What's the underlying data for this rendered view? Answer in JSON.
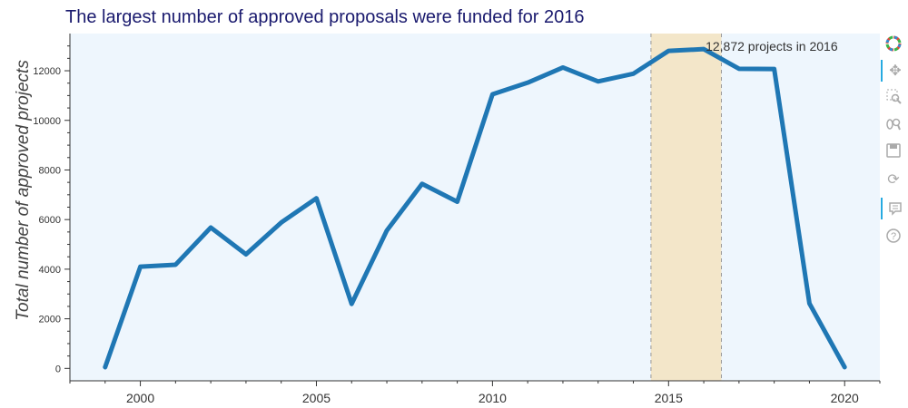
{
  "chart_data": {
    "type": "line",
    "title": "The largest number of approved proposals were funded for 2016",
    "xlabel": "",
    "ylabel": "Total number of approved projects",
    "xlim": [
      1998,
      2021
    ],
    "ylim": [
      -500,
      13500
    ],
    "x_ticks": [
      2000,
      2005,
      2010,
      2015,
      2020
    ],
    "y_ticks": [
      0,
      2000,
      4000,
      6000,
      8000,
      10000,
      12000
    ],
    "series": [
      {
        "color": "#1f77b4",
        "x": [
          1999,
          2000,
          2001,
          2002,
          2003,
          2004,
          2005,
          2006,
          2007,
          2008,
          2009,
          2010,
          2011,
          2012,
          2013,
          2014,
          2015,
          2016,
          2017,
          2018,
          2019,
          2020
        ],
        "y": [
          50,
          4100,
          4180,
          5680,
          4600,
          5880,
          6860,
          2600,
          5560,
          7440,
          6720,
          11050,
          11520,
          12130,
          11570,
          11880,
          12800,
          12872,
          12080,
          12070,
          2620,
          50
        ]
      }
    ],
    "highlight_band": {
      "x_start": 2014.5,
      "x_end": 2016.5,
      "color": "#f3e6c9"
    },
    "annotation": "12,872 projects in 2016",
    "background": "#eef6fd",
    "grid": false,
    "legend": "none"
  },
  "toolbar": {
    "logo_icon": "bokeh-logo-icon",
    "tools": [
      "pan-icon",
      "box-zoom-icon",
      "wheel-zoom-icon",
      "save-icon",
      "reset-icon",
      "hover-icon",
      "help-icon"
    ]
  }
}
